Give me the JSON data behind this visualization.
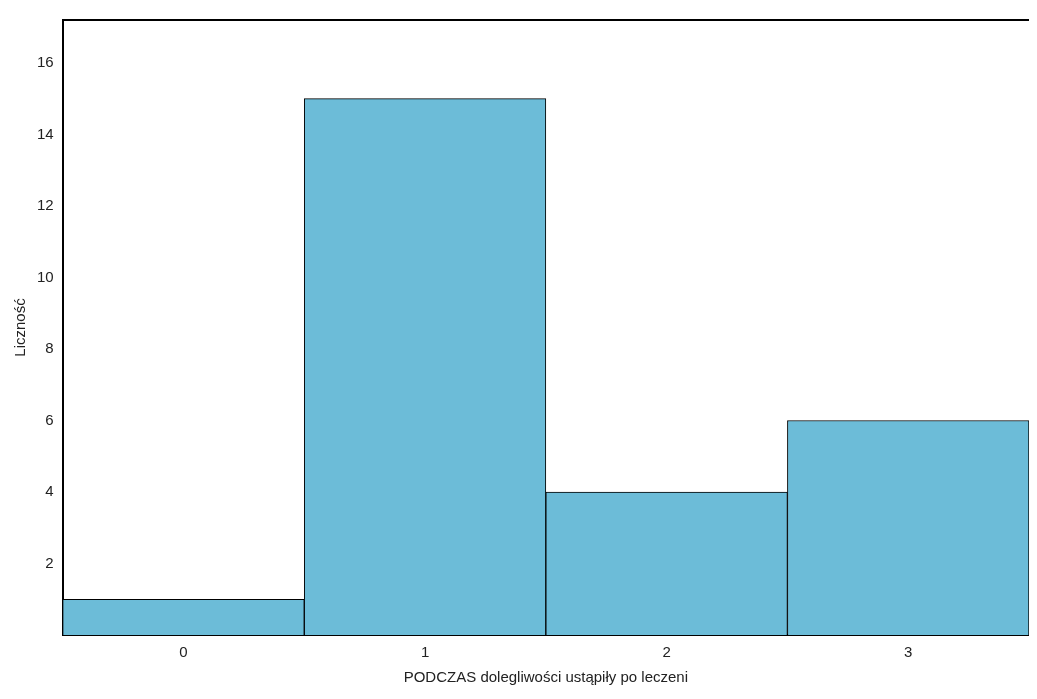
{
  "chart_data": {
    "type": "bar",
    "xlabel": "PODCZAS dolegliwości ustąpiły po leczeni",
    "ylabel": "Liczność",
    "categories": [
      "0",
      "1",
      "2",
      "3"
    ],
    "series": [
      {
        "color": "#6cbcd8",
        "values": [
          1,
          15,
          4,
          6
        ]
      }
    ],
    "ylim": [
      0,
      17.2
    ],
    "yticks": [
      2,
      4,
      6,
      8,
      10,
      12,
      14,
      16
    ],
    "grid": false,
    "legend": false
  }
}
